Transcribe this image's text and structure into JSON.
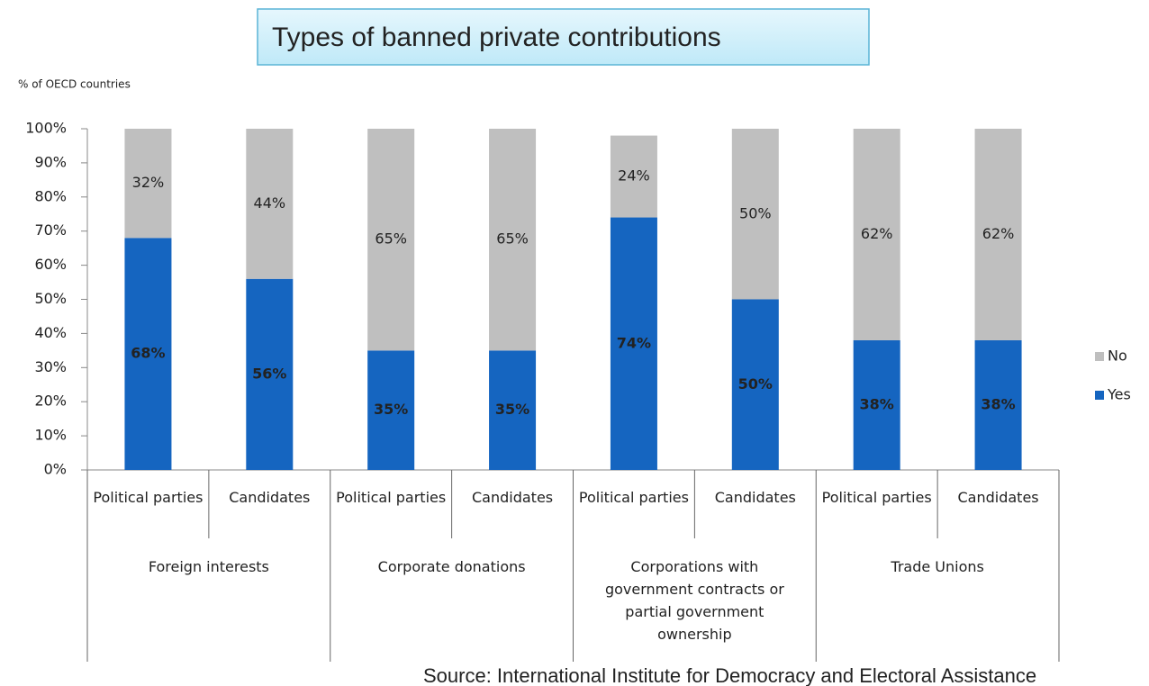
{
  "chart_data": {
    "type": "stacked_bar",
    "title": "Types of banned private contributions",
    "y_label": "% of OECD countries",
    "categories": [
      "Political parties",
      "Candidates",
      "Political parties",
      "Candidates",
      "Political parties",
      "Candidates",
      "Political parties",
      "Candidates"
    ],
    "groups": [
      "Foreign interests",
      "Corporate donations",
      "Corporations with government contracts or partial government ownership",
      "Trade Unions"
    ],
    "series": [
      {
        "name": "Yes",
        "color": "#1565c0",
        "values": [
          68,
          56,
          35,
          35,
          74,
          50,
          38,
          38
        ],
        "value_labels": [
          "68%",
          "56%",
          "35%",
          "35%",
          "74%",
          "50%",
          "38%",
          "38%"
        ]
      },
      {
        "name": "No",
        "color": "#bfbfbf",
        "values": [
          32,
          44,
          65,
          65,
          24,
          50,
          62,
          62
        ],
        "value_labels": [
          "32%",
          "44%",
          "65%",
          "65%",
          "24%",
          "50%",
          "62%",
          "62%"
        ]
      }
    ],
    "ylim": [
      0,
      100
    ],
    "yticks": [
      {
        "value": 0,
        "label": "0%"
      },
      {
        "value": 10,
        "label": "10%"
      },
      {
        "value": 20,
        "label": "20%"
      },
      {
        "value": 30,
        "label": "30%"
      },
      {
        "value": 40,
        "label": "40%"
      },
      {
        "value": 50,
        "label": "50%"
      },
      {
        "value": 60,
        "label": "60%"
      },
      {
        "value": 70,
        "label": "70%"
      },
      {
        "value": 80,
        "label": "80%"
      },
      {
        "value": 90,
        "label": "90%"
      },
      {
        "value": 100,
        "label": "100%"
      }
    ],
    "legend": "right",
    "source": "Source: International Institute for Democracy and Electoral Assistance"
  }
}
